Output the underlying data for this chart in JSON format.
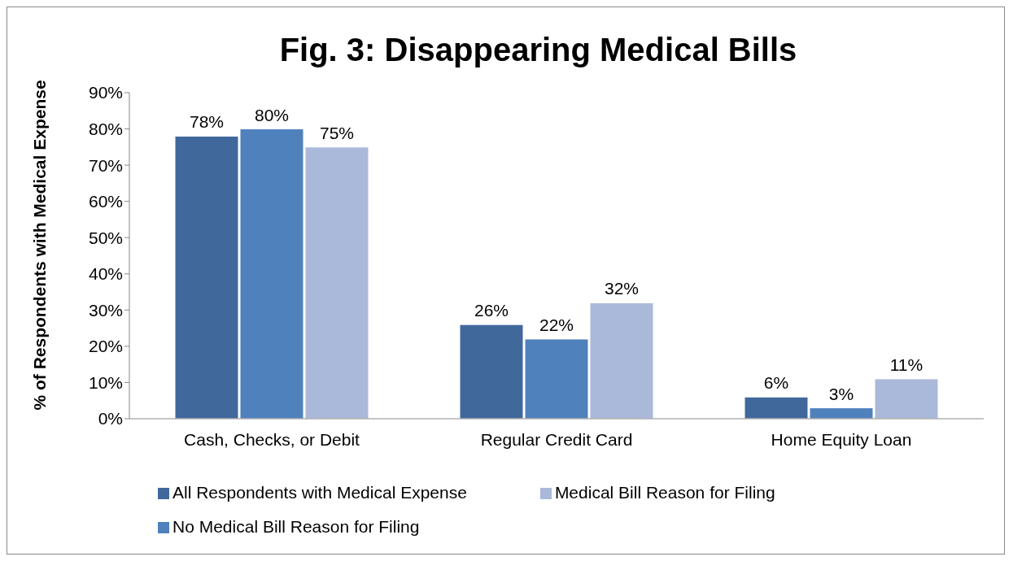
{
  "chart_data": {
    "type": "bar",
    "title": "Fig. 3: Disappearing Medical Bills",
    "ylabel": "% of Respondents with Medical Expense",
    "categories": [
      "Cash, Checks, or Debit",
      "Regular Credit Card",
      "Home Equity Loan"
    ],
    "series": [
      {
        "name": "All Respondents with Medical Expense",
        "color": "#41689b",
        "values": [
          78,
          26,
          6
        ],
        "value_labels": [
          "78%",
          "26%",
          "6%"
        ]
      },
      {
        "name": "No Medical Bill Reason for Filing",
        "color": "#4f81bd",
        "values": [
          80,
          22,
          3
        ],
        "value_labels": [
          "80%",
          "22%",
          "3%"
        ]
      },
      {
        "name": "Medical Bill Reason for Filing",
        "color": "#aab9d9",
        "values": [
          75,
          32,
          11
        ],
        "value_labels": [
          "75%",
          "32%",
          "11%"
        ]
      }
    ],
    "ylim": [
      0,
      90
    ],
    "yticks": [
      {
        "value": 0,
        "label": "0%"
      },
      {
        "value": 10,
        "label": "10%"
      },
      {
        "value": 20,
        "label": "20%"
      },
      {
        "value": 30,
        "label": "30%"
      },
      {
        "value": 40,
        "label": "40%"
      },
      {
        "value": 50,
        "label": "50%"
      },
      {
        "value": 60,
        "label": "60%"
      },
      {
        "value": 70,
        "label": "70%"
      },
      {
        "value": 80,
        "label": "80%"
      },
      {
        "value": 90,
        "label": "90%"
      }
    ],
    "grid": false,
    "legend": "bottom"
  }
}
